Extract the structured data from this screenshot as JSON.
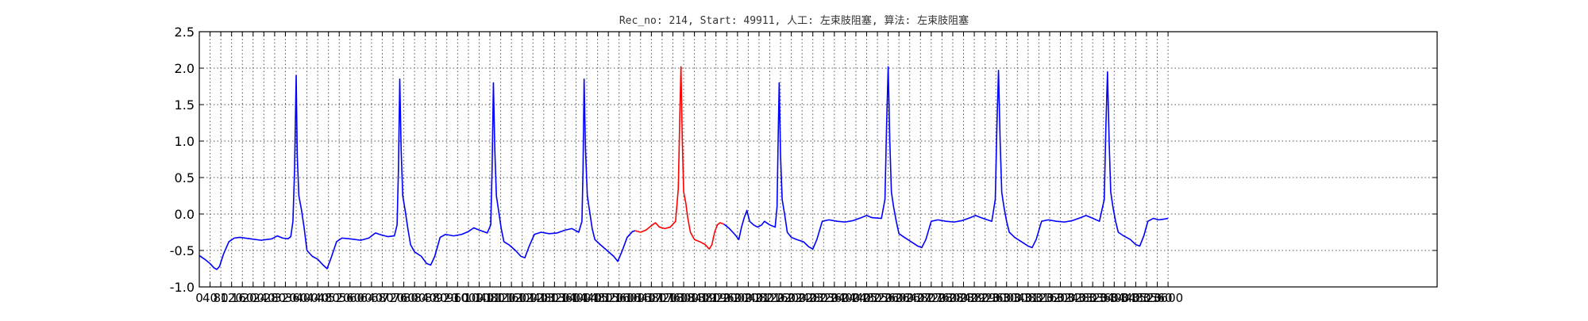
{
  "chart_data": {
    "type": "line",
    "title": "Rec_no: 214, Start: 49911, 人工: 左束肢阻塞, 算法: 左束肢阻塞",
    "xlabel": "",
    "ylabel": "",
    "xlim": [
      0,
      4600
    ],
    "ylim": [
      -1.0,
      2.5
    ],
    "grid": true,
    "y_ticks": [
      -1.0,
      -0.5,
      0.0,
      0.5,
      1.0,
      1.5,
      2.0,
      2.5
    ],
    "x_tick_step": 40,
    "x_tick_max": 3600,
    "colors": {
      "normal": "#0000ff",
      "highlight": "#ff0000"
    },
    "beats_r": [
      360,
      745,
      1093,
      1430,
      1790,
      2155,
      2560,
      2970,
      3375
    ],
    "highlight_range": [
      1620,
      1950
    ],
    "series": [
      {
        "color": "#0000ff",
        "points": [
          [
            0,
            -0.57
          ],
          [
            20,
            -0.62
          ],
          [
            40,
            -0.68
          ],
          [
            55,
            -0.74
          ],
          [
            65,
            -0.76
          ],
          [
            75,
            -0.72
          ],
          [
            90,
            -0.55
          ],
          [
            110,
            -0.38
          ],
          [
            130,
            -0.33
          ],
          [
            150,
            -0.32
          ],
          [
            190,
            -0.34
          ],
          [
            230,
            -0.36
          ],
          [
            270,
            -0.34
          ],
          [
            290,
            -0.3
          ],
          [
            310,
            -0.33
          ],
          [
            330,
            -0.34
          ],
          [
            340,
            -0.31
          ],
          [
            348,
            -0.1
          ],
          [
            354,
            0.6
          ],
          [
            360,
            1.9
          ],
          [
            364,
            0.8
          ],
          [
            370,
            0.25
          ],
          [
            380,
            0.05
          ],
          [
            390,
            -0.2
          ],
          [
            400,
            -0.5
          ],
          [
            420,
            -0.58
          ],
          [
            440,
            -0.62
          ],
          [
            460,
            -0.7
          ],
          [
            475,
            -0.75
          ],
          [
            490,
            -0.6
          ],
          [
            510,
            -0.38
          ],
          [
            530,
            -0.33
          ],
          [
            560,
            -0.34
          ],
          [
            600,
            -0.36
          ],
          [
            630,
            -0.33
          ],
          [
            655,
            -0.26
          ],
          [
            670,
            -0.28
          ],
          [
            700,
            -0.31
          ],
          [
            725,
            -0.3
          ],
          [
            735,
            -0.15
          ],
          [
            740,
            0.6
          ],
          [
            745,
            1.85
          ],
          [
            750,
            0.9
          ],
          [
            756,
            0.25
          ],
          [
            765,
            0.05
          ],
          [
            775,
            -0.2
          ],
          [
            785,
            -0.42
          ],
          [
            800,
            -0.52
          ],
          [
            825,
            -0.58
          ],
          [
            845,
            -0.68
          ],
          [
            860,
            -0.7
          ],
          [
            875,
            -0.58
          ],
          [
            895,
            -0.32
          ],
          [
            915,
            -0.28
          ],
          [
            945,
            -0.3
          ],
          [
            975,
            -0.28
          ],
          [
            1000,
            -0.24
          ],
          [
            1020,
            -0.19
          ],
          [
            1040,
            -0.22
          ],
          [
            1070,
            -0.26
          ],
          [
            1083,
            -0.15
          ],
          [
            1088,
            0.6
          ],
          [
            1093,
            1.8
          ],
          [
            1098,
            0.9
          ],
          [
            1104,
            0.25
          ],
          [
            1112,
            0.05
          ],
          [
            1122,
            -0.2
          ],
          [
            1132,
            -0.38
          ],
          [
            1150,
            -0.42
          ],
          [
            1175,
            -0.5
          ],
          [
            1195,
            -0.58
          ],
          [
            1210,
            -0.6
          ],
          [
            1225,
            -0.45
          ],
          [
            1245,
            -0.28
          ],
          [
            1270,
            -0.25
          ],
          [
            1300,
            -0.27
          ],
          [
            1330,
            -0.26
          ],
          [
            1360,
            -0.22
          ],
          [
            1385,
            -0.2
          ],
          [
            1410,
            -0.25
          ],
          [
            1422,
            -0.1
          ],
          [
            1426,
            0.6
          ],
          [
            1430,
            1.85
          ],
          [
            1435,
            0.9
          ],
          [
            1442,
            0.25
          ],
          [
            1450,
            0.05
          ],
          [
            1460,
            -0.2
          ],
          [
            1470,
            -0.35
          ],
          [
            1490,
            -0.42
          ],
          [
            1515,
            -0.5
          ],
          [
            1540,
            -0.58
          ],
          [
            1555,
            -0.65
          ],
          [
            1570,
            -0.52
          ],
          [
            1590,
            -0.32
          ],
          [
            1610,
            -0.24
          ],
          [
            1620,
            -0.23
          ]
        ]
      },
      {
        "color": "#ff0000",
        "points": [
          [
            1620,
            -0.23
          ],
          [
            1640,
            -0.25
          ],
          [
            1660,
            -0.22
          ],
          [
            1680,
            -0.16
          ],
          [
            1695,
            -0.12
          ],
          [
            1710,
            -0.18
          ],
          [
            1730,
            -0.2
          ],
          [
            1750,
            -0.18
          ],
          [
            1770,
            -0.1
          ],
          [
            1780,
            0.35
          ],
          [
            1786,
            1.4
          ],
          [
            1790,
            2.02
          ],
          [
            1795,
            1.0
          ],
          [
            1800,
            0.3
          ],
          [
            1808,
            0.15
          ],
          [
            1815,
            -0.05
          ],
          [
            1825,
            -0.25
          ],
          [
            1840,
            -0.35
          ],
          [
            1860,
            -0.38
          ],
          [
            1880,
            -0.42
          ],
          [
            1895,
            -0.48
          ],
          [
            1905,
            -0.42
          ],
          [
            1915,
            -0.25
          ],
          [
            1925,
            -0.15
          ],
          [
            1935,
            -0.12
          ],
          [
            1950,
            -0.14
          ]
        ]
      },
      {
        "color": "#0000ff",
        "points": [
          [
            1950,
            -0.14
          ],
          [
            1970,
            -0.2
          ],
          [
            1990,
            -0.28
          ],
          [
            2005,
            -0.35
          ],
          [
            2015,
            -0.18
          ],
          [
            2025,
            -0.05
          ],
          [
            2035,
            0.05
          ],
          [
            2045,
            -0.1
          ],
          [
            2060,
            -0.15
          ],
          [
            2075,
            -0.18
          ],
          [
            2090,
            -0.15
          ],
          [
            2100,
            -0.1
          ],
          [
            2120,
            -0.15
          ],
          [
            2140,
            -0.18
          ],
          [
            2147,
            0.1
          ],
          [
            2151,
            1.0
          ],
          [
            2155,
            1.8
          ],
          [
            2160,
            0.8
          ],
          [
            2166,
            0.2
          ],
          [
            2175,
            0.0
          ],
          [
            2185,
            -0.25
          ],
          [
            2200,
            -0.32
          ],
          [
            2220,
            -0.35
          ],
          [
            2245,
            -0.38
          ],
          [
            2265,
            -0.45
          ],
          [
            2280,
            -0.48
          ],
          [
            2295,
            -0.35
          ],
          [
            2315,
            -0.1
          ],
          [
            2340,
            -0.08
          ],
          [
            2370,
            -0.1
          ],
          [
            2400,
            -0.11
          ],
          [
            2430,
            -0.09
          ],
          [
            2460,
            -0.05
          ],
          [
            2480,
            -0.02
          ],
          [
            2500,
            -0.05
          ],
          [
            2535,
            -0.06
          ],
          [
            2548,
            0.2
          ],
          [
            2554,
            1.2
          ],
          [
            2560,
            2.02
          ],
          [
            2566,
            1.0
          ],
          [
            2572,
            0.3
          ],
          [
            2580,
            0.1
          ],
          [
            2590,
            -0.1
          ],
          [
            2600,
            -0.27
          ],
          [
            2620,
            -0.32
          ],
          [
            2645,
            -0.38
          ],
          [
            2670,
            -0.44
          ],
          [
            2685,
            -0.46
          ],
          [
            2700,
            -0.35
          ],
          [
            2720,
            -0.1
          ],
          [
            2745,
            -0.08
          ],
          [
            2775,
            -0.1
          ],
          [
            2805,
            -0.11
          ],
          [
            2835,
            -0.09
          ],
          [
            2865,
            -0.05
          ],
          [
            2885,
            -0.02
          ],
          [
            2905,
            -0.05
          ],
          [
            2945,
            -0.1
          ],
          [
            2958,
            0.2
          ],
          [
            2964,
            1.2
          ],
          [
            2970,
            1.97
          ],
          [
            2976,
            1.0
          ],
          [
            2982,
            0.3
          ],
          [
            2990,
            0.1
          ],
          [
            3000,
            -0.1
          ],
          [
            3010,
            -0.25
          ],
          [
            3030,
            -0.32
          ],
          [
            3055,
            -0.38
          ],
          [
            3080,
            -0.44
          ],
          [
            3095,
            -0.46
          ],
          [
            3110,
            -0.35
          ],
          [
            3130,
            -0.1
          ],
          [
            3155,
            -0.08
          ],
          [
            3185,
            -0.1
          ],
          [
            3215,
            -0.11
          ],
          [
            3245,
            -0.09
          ],
          [
            3275,
            -0.05
          ],
          [
            3295,
            -0.02
          ],
          [
            3315,
            -0.05
          ],
          [
            3345,
            -0.1
          ],
          [
            3363,
            0.2
          ],
          [
            3369,
            1.2
          ],
          [
            3375,
            1.95
          ],
          [
            3381,
            1.0
          ],
          [
            3387,
            0.3
          ],
          [
            3395,
            0.1
          ],
          [
            3405,
            -0.1
          ],
          [
            3415,
            -0.25
          ],
          [
            3435,
            -0.3
          ],
          [
            3460,
            -0.35
          ],
          [
            3480,
            -0.42
          ],
          [
            3495,
            -0.44
          ],
          [
            3510,
            -0.3
          ],
          [
            3525,
            -0.1
          ],
          [
            3545,
            -0.06
          ],
          [
            3565,
            -0.08
          ],
          [
            3585,
            -0.07
          ],
          [
            3600,
            -0.06
          ]
        ]
      }
    ]
  }
}
